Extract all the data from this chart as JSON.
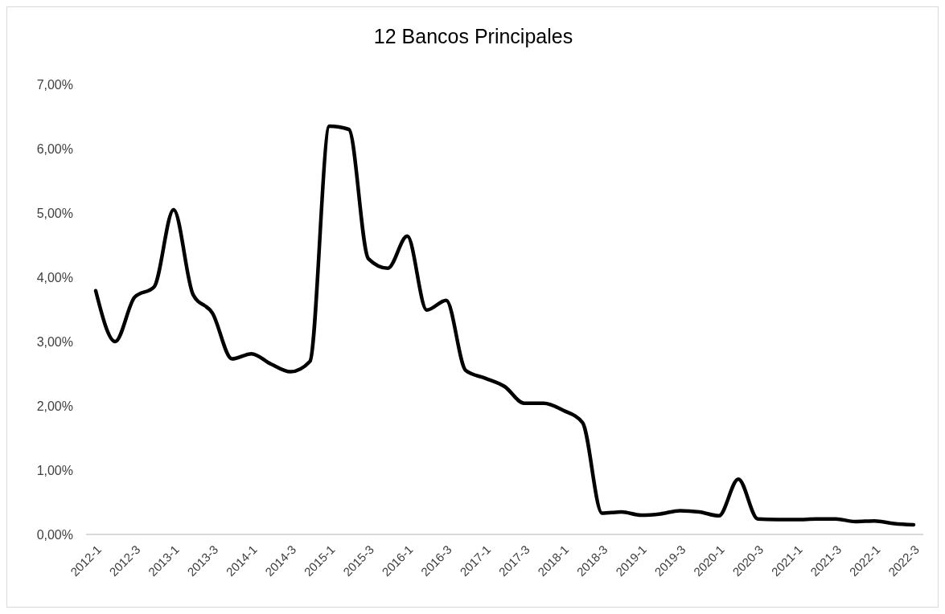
{
  "chart_data": {
    "type": "line",
    "title": "12 Bancos Principales",
    "categories": [
      "2012-1",
      null,
      "2012-3",
      null,
      "2013-1",
      null,
      "2013-3",
      null,
      "2014-1",
      null,
      "2014-3",
      null,
      "2015-1",
      null,
      "2015-3",
      null,
      "2016-1",
      null,
      "2016-3",
      null,
      "2017-1",
      null,
      "2017-3",
      null,
      "2018-1",
      null,
      "2018-3",
      null,
      "2019-1",
      null,
      "2019-3",
      null,
      "2020-1",
      null,
      "2020-3",
      null,
      "2021-1",
      null,
      "2021-3",
      null,
      "2022-1",
      null,
      "2022-3"
    ],
    "series": [
      {
        "color": "#000000",
        "values": [
          3.79,
          3.0,
          3.69,
          3.85,
          5.05,
          3.73,
          3.44,
          2.73,
          2.81,
          2.65,
          2.53,
          2.69,
          6.35,
          6.3,
          4.29,
          4.14,
          4.64,
          3.49,
          3.64,
          2.55,
          2.43,
          2.3,
          2.04,
          2.04,
          1.93,
          1.74,
          0.33,
          0.35,
          0.3,
          0.32,
          0.37,
          0.35,
          0.29,
          0.86,
          0.24,
          0.23,
          0.23,
          0.24,
          0.24,
          0.2,
          0.21,
          0.17,
          0.15
        ]
      }
    ],
    "ylim": [
      0,
      7
    ],
    "yticks": [
      {
        "value": 0,
        "label": "0,00%"
      },
      {
        "value": 1,
        "label": "1,00%"
      },
      {
        "value": 2,
        "label": "2,00%"
      },
      {
        "value": 3,
        "label": "3,00%"
      },
      {
        "value": 4,
        "label": "4,00%"
      },
      {
        "value": 5,
        "label": "5,00%"
      },
      {
        "value": 6,
        "label": "6,00%"
      },
      {
        "value": 7,
        "label": "7,00%"
      }
    ],
    "grid": false,
    "legend": false,
    "marker": "none",
    "line_style": "solid"
  }
}
